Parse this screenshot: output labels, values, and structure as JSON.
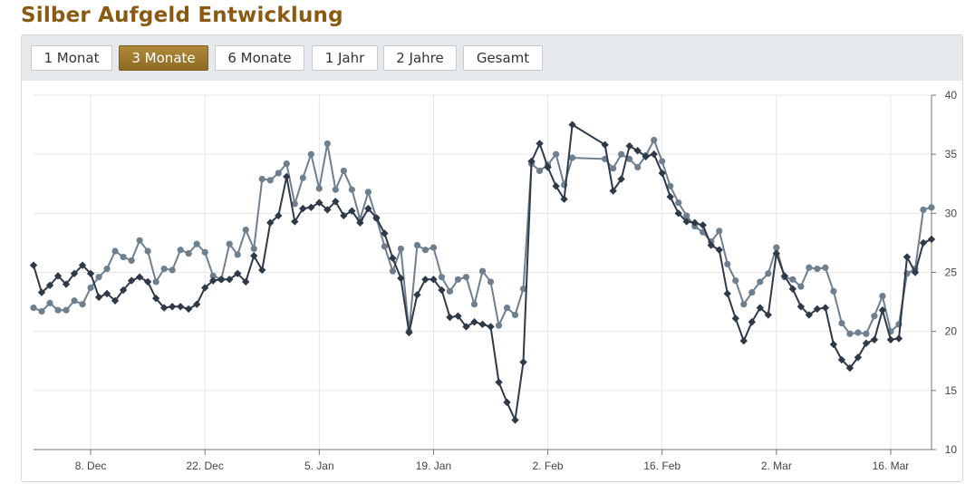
{
  "page": {
    "title": "Silber Aufgeld Entwicklung"
  },
  "toolbar": {
    "buttons": [
      {
        "label": "1 Monat",
        "active": false
      },
      {
        "label": "3 Monate",
        "active": true
      },
      {
        "label": "6 Monate",
        "active": false
      },
      {
        "label": "1 Jahr",
        "active": false
      },
      {
        "label": "2 Jahre",
        "active": false
      },
      {
        "label": "Gesamt",
        "active": false
      }
    ]
  },
  "colors": {
    "title": "#8a5a12",
    "active_button": "#9a7530",
    "series_dark": "#2e3a48",
    "series_light": "#6e7f8f",
    "grid": "#e6e6e6"
  },
  "chart_data": {
    "type": "line",
    "title": "",
    "xlabel": "",
    "ylabel": "",
    "ylim": [
      10,
      40
    ],
    "yticks": [
      10,
      15,
      20,
      25,
      30,
      35,
      40
    ],
    "xlim": [
      "2025-12-01",
      "2026-03-21"
    ],
    "xticks": [
      {
        "date": "2025-12-08",
        "label": "8. Dec"
      },
      {
        "date": "2025-12-22",
        "label": "22. Dec"
      },
      {
        "date": "2026-01-05",
        "label": "5. Jan"
      },
      {
        "date": "2026-01-19",
        "label": "19. Jan"
      },
      {
        "date": "2026-02-02",
        "label": "2. Feb"
      },
      {
        "date": "2026-02-16",
        "label": "16. Feb"
      },
      {
        "date": "2026-03-02",
        "label": "2. Mar"
      },
      {
        "date": "2026-03-16",
        "label": "16. Mar"
      }
    ],
    "legend": "none",
    "grid": true,
    "series": [
      {
        "marker": "diamond",
        "color": "#2e3a48",
        "points": [
          [
            "2025-12-01",
            25.6
          ],
          [
            "2025-12-02",
            23.3
          ],
          [
            "2025-12-03",
            23.9
          ],
          [
            "2025-12-04",
            24.7
          ],
          [
            "2025-12-05",
            24.0
          ],
          [
            "2025-12-06",
            24.9
          ],
          [
            "2025-12-07",
            25.6
          ],
          [
            "2025-12-08",
            24.9
          ],
          [
            "2025-12-09",
            22.9
          ],
          [
            "2025-12-10",
            23.2
          ],
          [
            "2025-12-11",
            22.6
          ],
          [
            "2025-12-12",
            23.5
          ],
          [
            "2025-12-13",
            24.3
          ],
          [
            "2025-12-14",
            24.6
          ],
          [
            "2025-12-15",
            24.2
          ],
          [
            "2025-12-16",
            22.8
          ],
          [
            "2025-12-17",
            22.0
          ],
          [
            "2025-12-18",
            22.1
          ],
          [
            "2025-12-19",
            22.1
          ],
          [
            "2025-12-20",
            21.9
          ],
          [
            "2025-12-21",
            22.3
          ],
          [
            "2025-12-22",
            23.7
          ],
          [
            "2025-12-23",
            24.3
          ],
          [
            "2025-12-24",
            24.4
          ],
          [
            "2025-12-25",
            24.4
          ],
          [
            "2025-12-26",
            24.9
          ],
          [
            "2025-12-27",
            24.2
          ],
          [
            "2025-12-28",
            26.4
          ],
          [
            "2025-12-29",
            25.2
          ],
          [
            "2025-12-30",
            29.2
          ],
          [
            "2025-12-31",
            29.8
          ],
          [
            "2026-01-01",
            33.1
          ],
          [
            "2026-01-02",
            29.3
          ],
          [
            "2026-01-03",
            30.4
          ],
          [
            "2026-01-04",
            30.5
          ],
          [
            "2026-01-05",
            30.9
          ],
          [
            "2026-01-06",
            30.3
          ],
          [
            "2026-01-07",
            31.0
          ],
          [
            "2026-01-08",
            29.8
          ],
          [
            "2026-01-09",
            30.2
          ],
          [
            "2026-01-10",
            29.2
          ],
          [
            "2026-01-11",
            30.4
          ],
          [
            "2026-01-12",
            29.6
          ],
          [
            "2026-01-13",
            28.3
          ],
          [
            "2026-01-14",
            26.2
          ],
          [
            "2026-01-15",
            24.5
          ],
          [
            "2026-01-16",
            19.9
          ],
          [
            "2026-01-17",
            23.1
          ],
          [
            "2026-01-18",
            24.4
          ],
          [
            "2026-01-19",
            24.4
          ],
          [
            "2026-01-20",
            23.5
          ],
          [
            "2026-01-21",
            21.2
          ],
          [
            "2026-01-22",
            21.3
          ],
          [
            "2026-01-23",
            20.4
          ],
          [
            "2026-01-24",
            20.8
          ],
          [
            "2026-01-25",
            20.6
          ],
          [
            "2026-01-26",
            20.4
          ],
          [
            "2026-01-27",
            15.7
          ],
          [
            "2026-01-28",
            14.0
          ],
          [
            "2026-01-29",
            12.5
          ],
          [
            "2026-01-30",
            17.4
          ],
          [
            "2026-01-31",
            34.4
          ],
          [
            "2026-02-01",
            35.9
          ],
          [
            "2026-02-02",
            33.9
          ],
          [
            "2026-02-03",
            32.3
          ],
          [
            "2026-02-04",
            31.2
          ],
          [
            "2026-02-05",
            37.5
          ],
          [
            "2026-02-09",
            35.8
          ],
          [
            "2026-02-10",
            31.9
          ],
          [
            "2026-02-11",
            32.9
          ],
          [
            "2026-02-12",
            35.7
          ],
          [
            "2026-02-13",
            35.3
          ],
          [
            "2026-02-14",
            34.8
          ],
          [
            "2026-02-15",
            35.0
          ],
          [
            "2026-02-16",
            33.4
          ],
          [
            "2026-02-17",
            31.4
          ],
          [
            "2026-02-18",
            30.0
          ],
          [
            "2026-02-19",
            29.3
          ],
          [
            "2026-02-20",
            29.2
          ],
          [
            "2026-02-21",
            29.0
          ],
          [
            "2026-02-22",
            27.3
          ],
          [
            "2026-02-23",
            26.9
          ],
          [
            "2026-02-24",
            23.2
          ],
          [
            "2026-02-25",
            21.1
          ],
          [
            "2026-02-26",
            19.2
          ],
          [
            "2026-02-27",
            20.8
          ],
          [
            "2026-02-28",
            22.0
          ],
          [
            "2026-03-01",
            21.4
          ],
          [
            "2026-03-02",
            26.6
          ],
          [
            "2026-03-03",
            24.7
          ],
          [
            "2026-03-04",
            23.6
          ],
          [
            "2026-03-05",
            22.1
          ],
          [
            "2026-03-06",
            21.4
          ],
          [
            "2026-03-07",
            21.9
          ],
          [
            "2026-03-08",
            22.0
          ],
          [
            "2026-03-09",
            18.9
          ],
          [
            "2026-03-10",
            17.6
          ],
          [
            "2026-03-11",
            16.9
          ],
          [
            "2026-03-12",
            17.8
          ],
          [
            "2026-03-13",
            19.0
          ],
          [
            "2026-03-14",
            19.3
          ],
          [
            "2026-03-15",
            21.8
          ],
          [
            "2026-03-16",
            19.3
          ],
          [
            "2026-03-17",
            19.4
          ],
          [
            "2026-03-18",
            26.3
          ],
          [
            "2026-03-19",
            25.0
          ],
          [
            "2026-03-20",
            27.5
          ],
          [
            "2026-03-21",
            27.8
          ]
        ]
      },
      {
        "marker": "circle",
        "color": "#6e7f8f",
        "points": [
          [
            "2025-12-01",
            22.0
          ],
          [
            "2025-12-02",
            21.7
          ],
          [
            "2025-12-03",
            22.4
          ],
          [
            "2025-12-04",
            21.8
          ],
          [
            "2025-12-05",
            21.8
          ],
          [
            "2025-12-06",
            22.6
          ],
          [
            "2025-12-07",
            22.3
          ],
          [
            "2025-12-08",
            23.7
          ],
          [
            "2025-12-09",
            24.6
          ],
          [
            "2025-12-10",
            25.3
          ],
          [
            "2025-12-11",
            26.8
          ],
          [
            "2025-12-12",
            26.3
          ],
          [
            "2025-12-13",
            26.0
          ],
          [
            "2025-12-14",
            27.7
          ],
          [
            "2025-12-15",
            26.8
          ],
          [
            "2025-12-16",
            24.2
          ],
          [
            "2025-12-17",
            25.3
          ],
          [
            "2025-12-18",
            25.2
          ],
          [
            "2025-12-19",
            26.9
          ],
          [
            "2025-12-20",
            26.6
          ],
          [
            "2025-12-21",
            27.4
          ],
          [
            "2025-12-22",
            26.7
          ],
          [
            "2025-12-23",
            24.7
          ],
          [
            "2025-12-24",
            24.4
          ],
          [
            "2025-12-25",
            27.4
          ],
          [
            "2025-12-26",
            26.5
          ],
          [
            "2025-12-27",
            28.6
          ],
          [
            "2025-12-28",
            27.0
          ],
          [
            "2025-12-29",
            32.9
          ],
          [
            "2025-12-30",
            32.8
          ],
          [
            "2025-12-31",
            33.4
          ],
          [
            "2026-01-01",
            34.2
          ],
          [
            "2026-01-02",
            30.8
          ],
          [
            "2026-01-03",
            33.0
          ],
          [
            "2026-01-04",
            35.0
          ],
          [
            "2026-01-05",
            32.1
          ],
          [
            "2026-01-06",
            35.9
          ],
          [
            "2026-01-07",
            32.0
          ],
          [
            "2026-01-08",
            33.6
          ],
          [
            "2026-01-09",
            32.0
          ],
          [
            "2026-01-10",
            29.5
          ],
          [
            "2026-01-11",
            31.8
          ],
          [
            "2026-01-12",
            29.6
          ],
          [
            "2026-01-13",
            27.2
          ],
          [
            "2026-01-14",
            25.1
          ],
          [
            "2026-01-15",
            27.0
          ],
          [
            "2026-01-16",
            20.0
          ],
          [
            "2026-01-17",
            27.3
          ],
          [
            "2026-01-18",
            26.9
          ],
          [
            "2026-01-19",
            27.1
          ],
          [
            "2026-01-20",
            24.6
          ],
          [
            "2026-01-21",
            23.4
          ],
          [
            "2026-01-22",
            24.4
          ],
          [
            "2026-01-23",
            24.6
          ],
          [
            "2026-01-24",
            22.3
          ],
          [
            "2026-01-25",
            25.1
          ],
          [
            "2026-01-26",
            24.2
          ],
          [
            "2026-01-27",
            20.5
          ],
          [
            "2026-01-28",
            22.0
          ],
          [
            "2026-01-29",
            21.4
          ],
          [
            "2026-01-30",
            23.6
          ],
          [
            "2026-01-31",
            34.2
          ],
          [
            "2026-02-01",
            33.6
          ],
          [
            "2026-02-02",
            34.1
          ],
          [
            "2026-02-03",
            35.0
          ],
          [
            "2026-02-04",
            32.4
          ],
          [
            "2026-02-05",
            34.7
          ],
          [
            "2026-02-09",
            34.6
          ],
          [
            "2026-02-10",
            33.8
          ],
          [
            "2026-02-11",
            35.0
          ],
          [
            "2026-02-12",
            34.6
          ],
          [
            "2026-02-13",
            33.9
          ],
          [
            "2026-02-14",
            34.9
          ],
          [
            "2026-02-15",
            36.2
          ],
          [
            "2026-02-16",
            34.4
          ],
          [
            "2026-02-17",
            32.3
          ],
          [
            "2026-02-18",
            30.9
          ],
          [
            "2026-02-19",
            29.8
          ],
          [
            "2026-02-20",
            28.9
          ],
          [
            "2026-02-21",
            28.4
          ],
          [
            "2026-02-22",
            27.6
          ],
          [
            "2026-02-23",
            28.5
          ],
          [
            "2026-02-24",
            25.7
          ],
          [
            "2026-02-25",
            24.3
          ],
          [
            "2026-02-26",
            22.3
          ],
          [
            "2026-02-27",
            23.3
          ],
          [
            "2026-02-28",
            24.2
          ],
          [
            "2026-03-01",
            24.9
          ],
          [
            "2026-03-02",
            27.1
          ],
          [
            "2026-03-03",
            24.6
          ],
          [
            "2026-03-04",
            24.4
          ],
          [
            "2026-03-05",
            23.8
          ],
          [
            "2026-03-06",
            25.4
          ],
          [
            "2026-03-07",
            25.3
          ],
          [
            "2026-03-08",
            25.4
          ],
          [
            "2026-03-09",
            23.4
          ],
          [
            "2026-03-10",
            20.7
          ],
          [
            "2026-03-11",
            19.8
          ],
          [
            "2026-03-12",
            19.9
          ],
          [
            "2026-03-13",
            19.8
          ],
          [
            "2026-03-14",
            21.3
          ],
          [
            "2026-03-15",
            23.0
          ],
          [
            "2026-03-16",
            20.0
          ],
          [
            "2026-03-17",
            20.6
          ],
          [
            "2026-03-18",
            24.9
          ],
          [
            "2026-03-19",
            25.3
          ],
          [
            "2026-03-20",
            30.3
          ],
          [
            "2026-03-21",
            30.5
          ]
        ]
      }
    ]
  }
}
